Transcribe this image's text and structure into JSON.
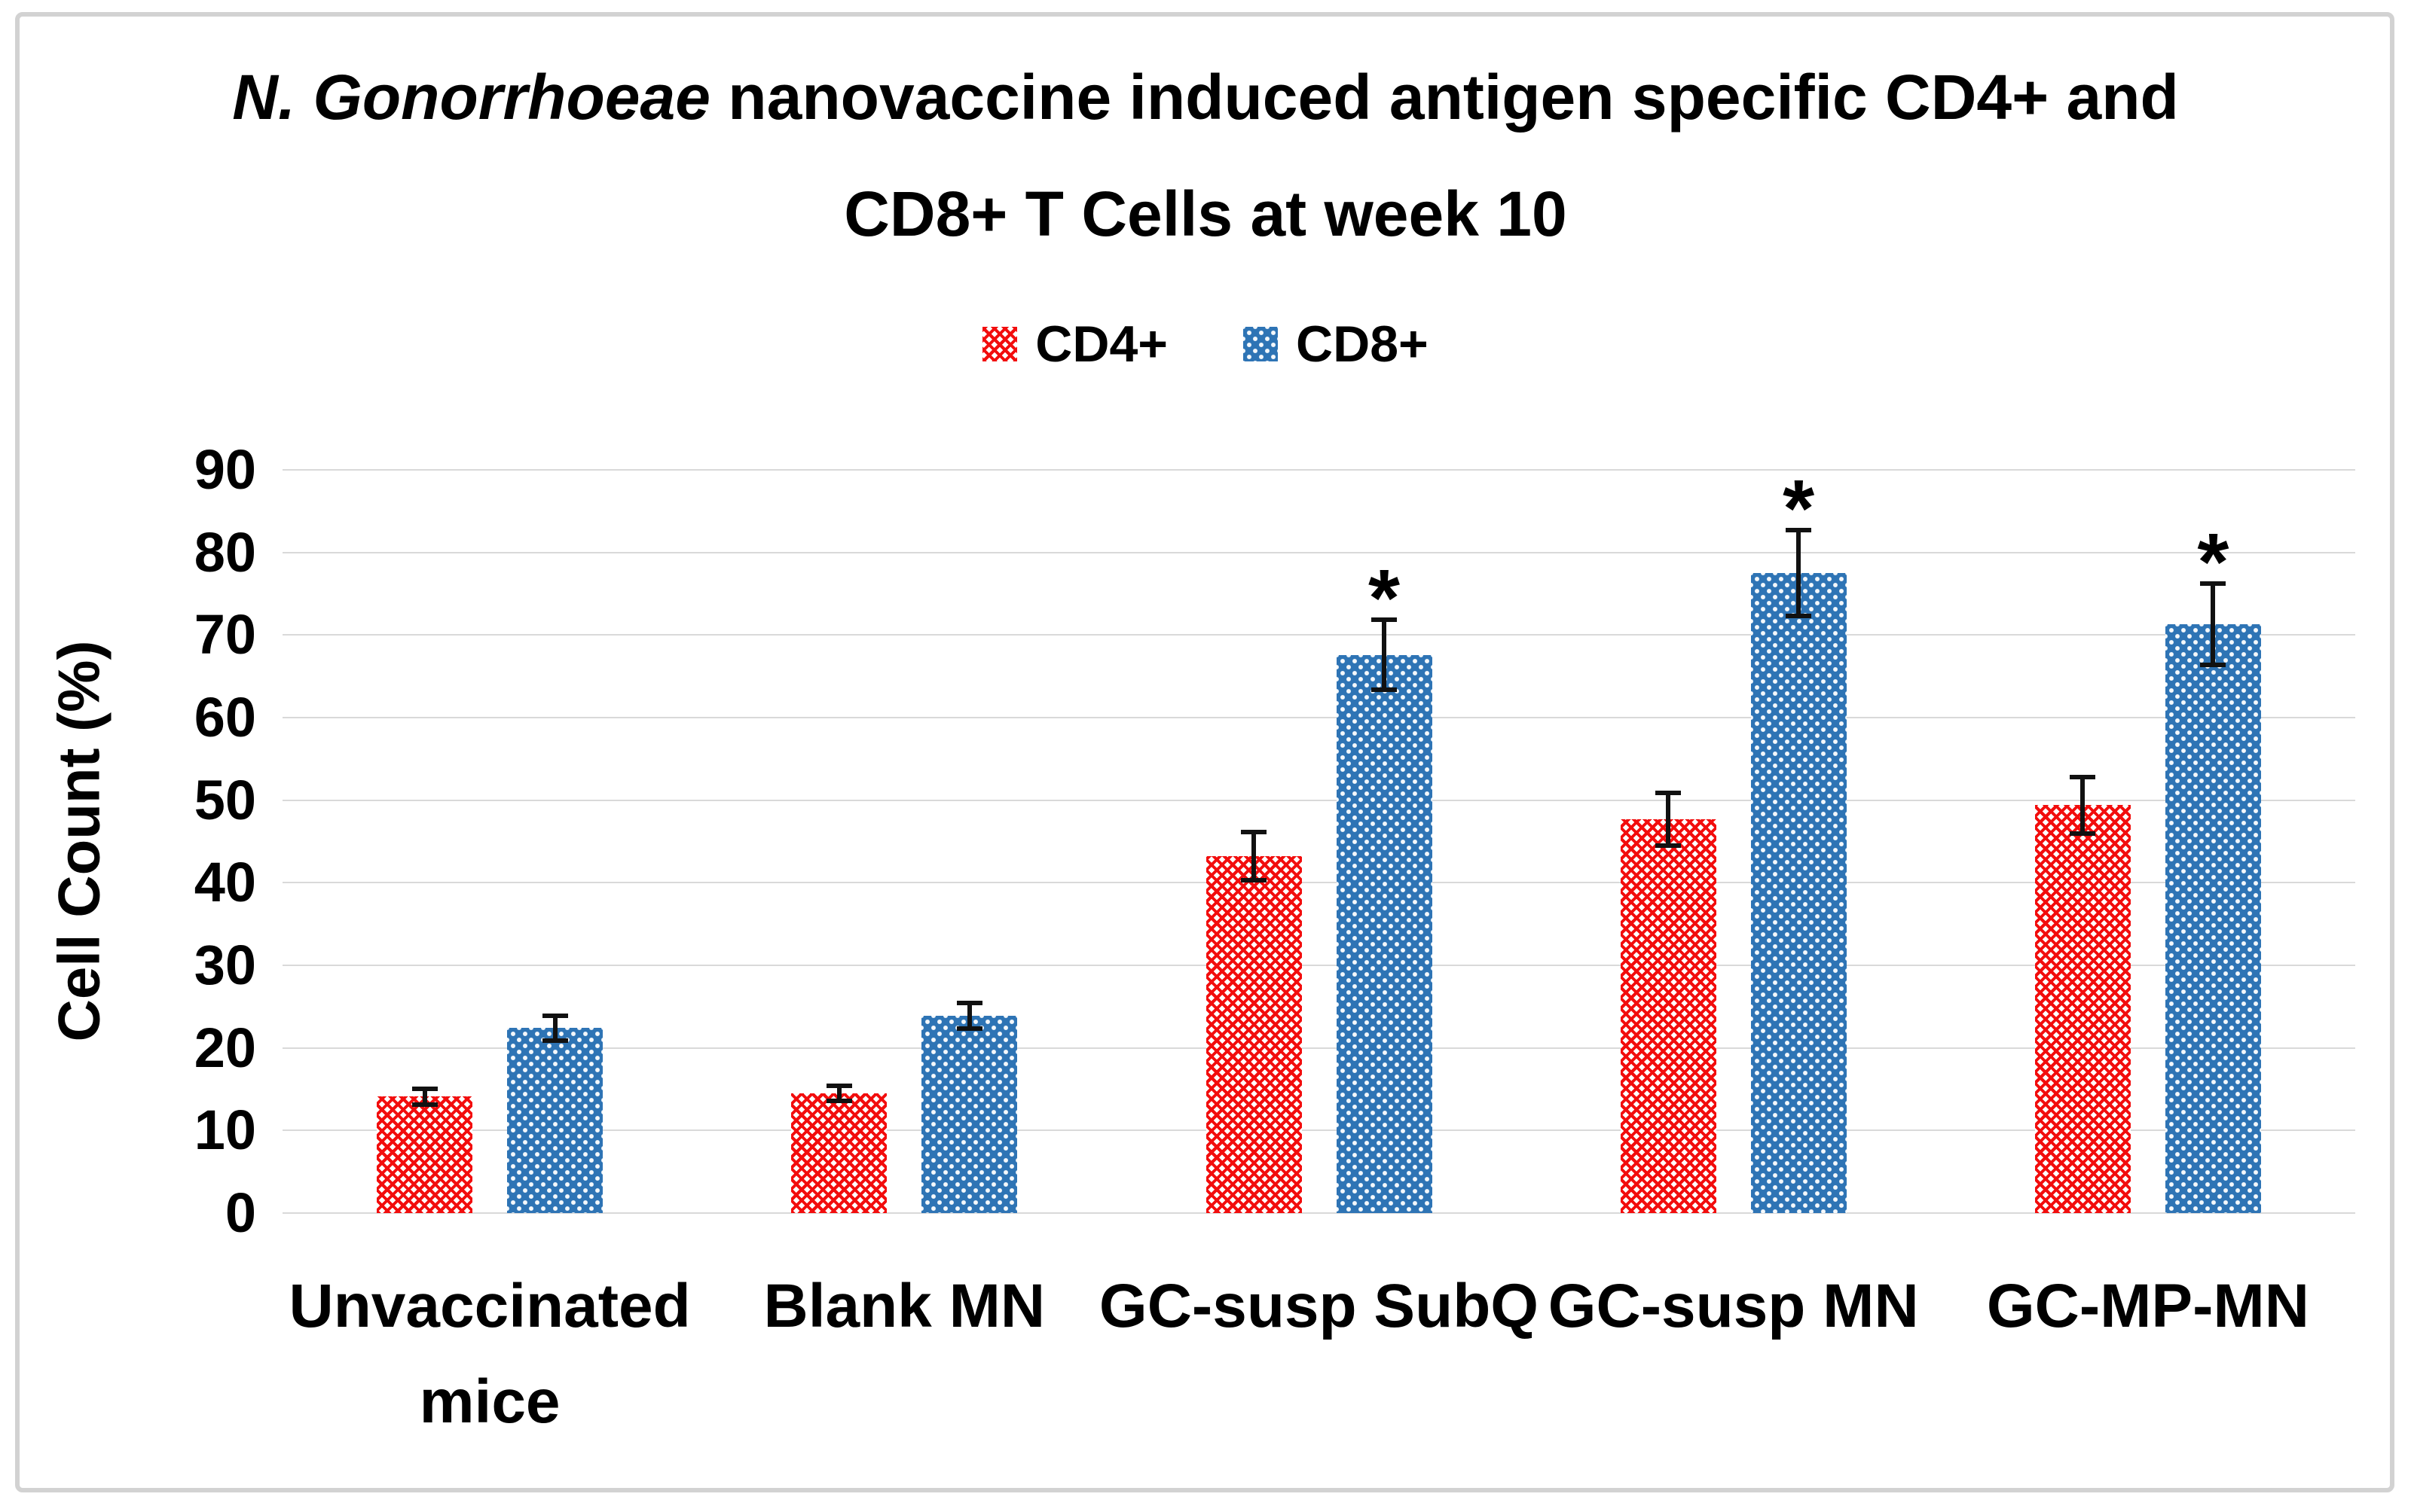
{
  "chart_data": {
    "type": "bar",
    "title_line1_italic": "N. Gonorrhoeae",
    "title_line1_rest": " nanovaccine induced antigen specific CD4+ and",
    "title_line2": "CD8+ T Cells at week 10",
    "title_full": "N. Gonorrhoeae nanovaccine induced antigen specific CD4+ and CD8+ T Cells at week 10",
    "ylabel": "Cell Count (%)",
    "xlabel": "",
    "ylim": [
      0,
      90
    ],
    "yticks": [
      0,
      10,
      20,
      30,
      40,
      50,
      60,
      70,
      80,
      90
    ],
    "grid": true,
    "legend_position": "top-center",
    "categories": [
      "Unvaccinated mice",
      "Blank MN",
      "GC-susp SubQ",
      "GC-susp MN",
      "GC-MP-MN"
    ],
    "category_lines": [
      [
        "Unvaccinated",
        "mice"
      ],
      [
        "Blank MN"
      ],
      [
        "GC-susp SubQ"
      ],
      [
        "GC-susp MN"
      ],
      [
        "GC-MP-MN"
      ]
    ],
    "series": [
      {
        "name": "CD4+",
        "color": "#f20d0d",
        "pattern": "red-diagonal-crosshatch-on-white",
        "values": [
          14.1,
          14.5,
          43.2,
          47.7,
          49.4
        ],
        "errors": [
          1.2,
          1.2,
          3.2,
          3.5,
          3.7
        ],
        "significance": [
          "",
          "",
          "",
          "",
          ""
        ]
      },
      {
        "name": "CD8+",
        "color": "#2e74b5",
        "pattern": "white-dot-crosshatch-on-blue",
        "values": [
          22.4,
          23.9,
          67.6,
          77.5,
          71.3
        ],
        "errors": [
          1.8,
          1.8,
          4.5,
          5.5,
          5.2
        ],
        "significance": [
          "",
          "",
          "*",
          "*",
          "*"
        ]
      }
    ],
    "annotations": {
      "significance_marker": "*",
      "marker_meaning_shown": ""
    },
    "colors": {
      "cd4_red": "#f20d0d",
      "cd8_blue": "#2e74b5",
      "gridline": "#d9d9d9",
      "outer_border": "#d2d2d2",
      "text": "#000000",
      "error_bar": "#111111",
      "background": "#ffffff"
    }
  }
}
